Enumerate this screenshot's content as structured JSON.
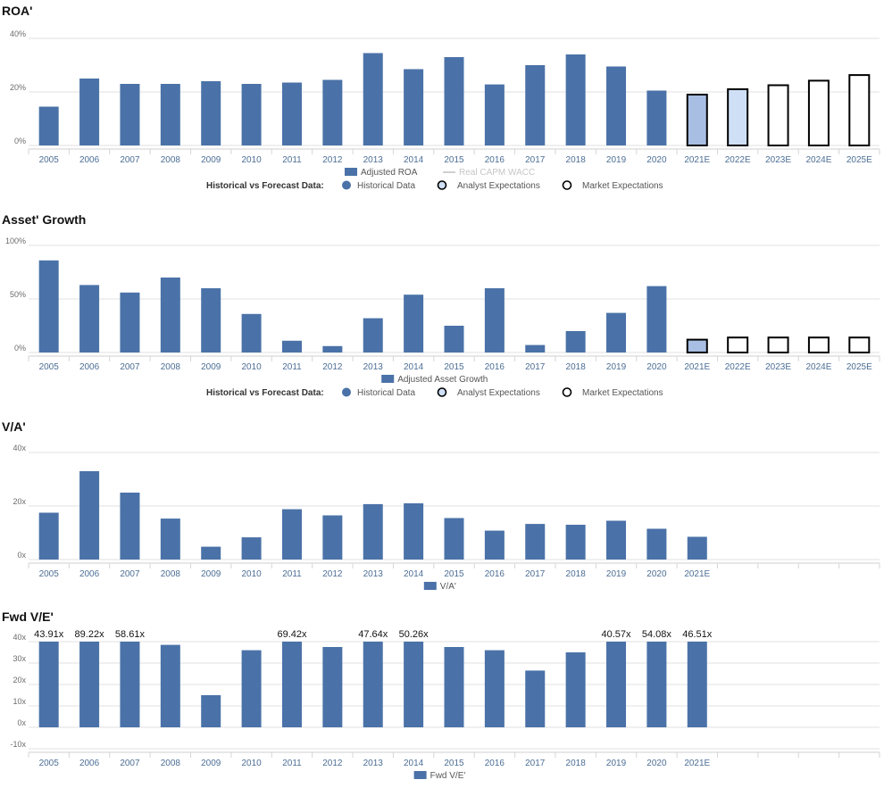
{
  "colors": {
    "historical": "#4a72a8",
    "analyst_2021": "#a8bfe3",
    "analyst_2022": "#cfe0f6",
    "market": "#ffffff",
    "outline": "#000000",
    "grid": "#e2e2e2"
  },
  "legend": {
    "heading": "Historical vs Forecast Data:",
    "historical": "Historical Data",
    "analyst": "Analyst Expectations",
    "market": "Market Expectations"
  },
  "chart_data": [
    {
      "id": "roa",
      "type": "bar",
      "title": "ROA'",
      "categories": [
        "2005",
        "2006",
        "2007",
        "2008",
        "2009",
        "2010",
        "2011",
        "2012",
        "2013",
        "2014",
        "2015",
        "2016",
        "2017",
        "2018",
        "2019",
        "2020",
        "2021E",
        "2022E",
        "2023E",
        "2024E",
        "2025E"
      ],
      "values": [
        14.5,
        25,
        23,
        23,
        24,
        23,
        23.5,
        24.5,
        34.5,
        28.5,
        33,
        22.8,
        30,
        34,
        29.5,
        20.5,
        19,
        21,
        22.5,
        24.2,
        26.3
      ],
      "kinds": [
        "h",
        "h",
        "h",
        "h",
        "h",
        "h",
        "h",
        "h",
        "h",
        "h",
        "h",
        "h",
        "h",
        "h",
        "h",
        "h",
        "a1",
        "a2",
        "m",
        "m",
        "m"
      ],
      "ylim": [
        0,
        40
      ],
      "ticks": [
        {
          "v": 0,
          "label": "0%"
        },
        {
          "v": 20,
          "label": "20%"
        },
        {
          "v": 40,
          "label": "40%"
        }
      ],
      "series_legend": [
        "Adjusted ROA",
        "Real CAPM WACC"
      ]
    },
    {
      "id": "asset-growth",
      "type": "bar",
      "title": "Asset' Growth",
      "categories": [
        "2005",
        "2006",
        "2007",
        "2008",
        "2009",
        "2010",
        "2011",
        "2012",
        "2013",
        "2014",
        "2015",
        "2016",
        "2017",
        "2018",
        "2019",
        "2020",
        "2021E",
        "2022E",
        "2023E",
        "2024E",
        "2025E"
      ],
      "values": [
        86,
        63,
        56,
        70,
        60,
        36,
        11,
        6,
        32,
        54,
        25,
        60,
        7,
        20,
        37,
        62,
        12,
        14,
        14,
        14,
        14
      ],
      "kinds": [
        "h",
        "h",
        "h",
        "h",
        "h",
        "h",
        "h",
        "h",
        "h",
        "h",
        "h",
        "h",
        "h",
        "h",
        "h",
        "h",
        "a1",
        "m",
        "m",
        "m",
        "m"
      ],
      "ylim": [
        0,
        100
      ],
      "ticks": [
        {
          "v": 0,
          "label": "0%"
        },
        {
          "v": 50,
          "label": "50%"
        },
        {
          "v": 100,
          "label": "100%"
        }
      ],
      "series_legend": [
        "Adjusted Asset Growth"
      ]
    },
    {
      "id": "va",
      "type": "bar",
      "title": "V/A'",
      "categories": [
        "2005",
        "2006",
        "2007",
        "2008",
        "2009",
        "2010",
        "2011",
        "2012",
        "2013",
        "2014",
        "2015",
        "2016",
        "2017",
        "2018",
        "2019",
        "2020",
        "2021E"
      ],
      "values": [
        17.5,
        33,
        25,
        15.3,
        4.8,
        8.3,
        18.8,
        16.5,
        20.7,
        21,
        15.5,
        10.8,
        13.3,
        13,
        14.5,
        11.5,
        8.5
      ],
      "kinds": [
        "h",
        "h",
        "h",
        "h",
        "h",
        "h",
        "h",
        "h",
        "h",
        "h",
        "h",
        "h",
        "h",
        "h",
        "h",
        "h",
        "h"
      ],
      "ylim": [
        0,
        40
      ],
      "ticks": [
        {
          "v": 0,
          "label": "0x"
        },
        {
          "v": 20,
          "label": "20x"
        },
        {
          "v": 40,
          "label": "40x"
        }
      ],
      "empty_slots": 4,
      "series_legend": [
        "V/A'"
      ]
    },
    {
      "id": "fwd-ve",
      "type": "bar",
      "title": "Fwd V/E'",
      "categories": [
        "2005",
        "2006",
        "2007",
        "2008",
        "2009",
        "2010",
        "2011",
        "2012",
        "2013",
        "2014",
        "2015",
        "2016",
        "2017",
        "2018",
        "2019",
        "2020",
        "2021E"
      ],
      "values": [
        43.91,
        89.22,
        58.61,
        38.5,
        15,
        36,
        69.42,
        37.5,
        47.64,
        50.26,
        37.5,
        36,
        26.5,
        35,
        40.57,
        54.08,
        46.51
      ],
      "data_labels": [
        "43.91x",
        "89.22x",
        "58.61x",
        "",
        "",
        "",
        "69.42x",
        "",
        "47.64x",
        "50.26x",
        "",
        "",
        "",
        "",
        "40.57x",
        "54.08x",
        "46.51x"
      ],
      "kinds": [
        "h",
        "h",
        "h",
        "h",
        "h",
        "h",
        "h",
        "h",
        "h",
        "h",
        "h",
        "h",
        "h",
        "h",
        "h",
        "h",
        "h"
      ],
      "ylim": [
        -10,
        40
      ],
      "ticks": [
        {
          "v": -10,
          "label": "-10x"
        },
        {
          "v": 0,
          "label": "0x"
        },
        {
          "v": 10,
          "label": "10x"
        },
        {
          "v": 20,
          "label": "20x"
        },
        {
          "v": 30,
          "label": "30x"
        },
        {
          "v": 40,
          "label": "40x"
        }
      ],
      "empty_slots": 4,
      "series_legend": [
        "Fwd V/E'"
      ]
    }
  ]
}
